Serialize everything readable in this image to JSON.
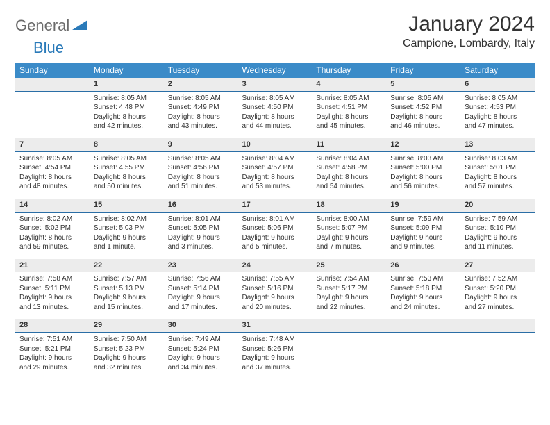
{
  "logo": {
    "general": "General",
    "blue": "Blue",
    "accent_color": "#2a7ab9"
  },
  "header": {
    "title": "January 2024",
    "location": "Campione, Lombardy, Italy"
  },
  "colors": {
    "header_bg": "#3b8bc8",
    "header_text": "#ffffff",
    "daynum_bg": "#ececec",
    "daynum_border": "#2a6ea6",
    "body_text": "#333333"
  },
  "weekdays": [
    "Sunday",
    "Monday",
    "Tuesday",
    "Wednesday",
    "Thursday",
    "Friday",
    "Saturday"
  ],
  "weeks": [
    [
      {
        "n": ""
      },
      {
        "n": "1",
        "sr": "8:05 AM",
        "ss": "4:48 PM",
        "d1": "Daylight: 8 hours",
        "d2": "and 42 minutes."
      },
      {
        "n": "2",
        "sr": "8:05 AM",
        "ss": "4:49 PM",
        "d1": "Daylight: 8 hours",
        "d2": "and 43 minutes."
      },
      {
        "n": "3",
        "sr": "8:05 AM",
        "ss": "4:50 PM",
        "d1": "Daylight: 8 hours",
        "d2": "and 44 minutes."
      },
      {
        "n": "4",
        "sr": "8:05 AM",
        "ss": "4:51 PM",
        "d1": "Daylight: 8 hours",
        "d2": "and 45 minutes."
      },
      {
        "n": "5",
        "sr": "8:05 AM",
        "ss": "4:52 PM",
        "d1": "Daylight: 8 hours",
        "d2": "and 46 minutes."
      },
      {
        "n": "6",
        "sr": "8:05 AM",
        "ss": "4:53 PM",
        "d1": "Daylight: 8 hours",
        "d2": "and 47 minutes."
      }
    ],
    [
      {
        "n": "7",
        "sr": "8:05 AM",
        "ss": "4:54 PM",
        "d1": "Daylight: 8 hours",
        "d2": "and 48 minutes."
      },
      {
        "n": "8",
        "sr": "8:05 AM",
        "ss": "4:55 PM",
        "d1": "Daylight: 8 hours",
        "d2": "and 50 minutes."
      },
      {
        "n": "9",
        "sr": "8:05 AM",
        "ss": "4:56 PM",
        "d1": "Daylight: 8 hours",
        "d2": "and 51 minutes."
      },
      {
        "n": "10",
        "sr": "8:04 AM",
        "ss": "4:57 PM",
        "d1": "Daylight: 8 hours",
        "d2": "and 53 minutes."
      },
      {
        "n": "11",
        "sr": "8:04 AM",
        "ss": "4:58 PM",
        "d1": "Daylight: 8 hours",
        "d2": "and 54 minutes."
      },
      {
        "n": "12",
        "sr": "8:03 AM",
        "ss": "5:00 PM",
        "d1": "Daylight: 8 hours",
        "d2": "and 56 minutes."
      },
      {
        "n": "13",
        "sr": "8:03 AM",
        "ss": "5:01 PM",
        "d1": "Daylight: 8 hours",
        "d2": "and 57 minutes."
      }
    ],
    [
      {
        "n": "14",
        "sr": "8:02 AM",
        "ss": "5:02 PM",
        "d1": "Daylight: 8 hours",
        "d2": "and 59 minutes."
      },
      {
        "n": "15",
        "sr": "8:02 AM",
        "ss": "5:03 PM",
        "d1": "Daylight: 9 hours",
        "d2": "and 1 minute."
      },
      {
        "n": "16",
        "sr": "8:01 AM",
        "ss": "5:05 PM",
        "d1": "Daylight: 9 hours",
        "d2": "and 3 minutes."
      },
      {
        "n": "17",
        "sr": "8:01 AM",
        "ss": "5:06 PM",
        "d1": "Daylight: 9 hours",
        "d2": "and 5 minutes."
      },
      {
        "n": "18",
        "sr": "8:00 AM",
        "ss": "5:07 PM",
        "d1": "Daylight: 9 hours",
        "d2": "and 7 minutes."
      },
      {
        "n": "19",
        "sr": "7:59 AM",
        "ss": "5:09 PM",
        "d1": "Daylight: 9 hours",
        "d2": "and 9 minutes."
      },
      {
        "n": "20",
        "sr": "7:59 AM",
        "ss": "5:10 PM",
        "d1": "Daylight: 9 hours",
        "d2": "and 11 minutes."
      }
    ],
    [
      {
        "n": "21",
        "sr": "7:58 AM",
        "ss": "5:11 PM",
        "d1": "Daylight: 9 hours",
        "d2": "and 13 minutes."
      },
      {
        "n": "22",
        "sr": "7:57 AM",
        "ss": "5:13 PM",
        "d1": "Daylight: 9 hours",
        "d2": "and 15 minutes."
      },
      {
        "n": "23",
        "sr": "7:56 AM",
        "ss": "5:14 PM",
        "d1": "Daylight: 9 hours",
        "d2": "and 17 minutes."
      },
      {
        "n": "24",
        "sr": "7:55 AM",
        "ss": "5:16 PM",
        "d1": "Daylight: 9 hours",
        "d2": "and 20 minutes."
      },
      {
        "n": "25",
        "sr": "7:54 AM",
        "ss": "5:17 PM",
        "d1": "Daylight: 9 hours",
        "d2": "and 22 minutes."
      },
      {
        "n": "26",
        "sr": "7:53 AM",
        "ss": "5:18 PM",
        "d1": "Daylight: 9 hours",
        "d2": "and 24 minutes."
      },
      {
        "n": "27",
        "sr": "7:52 AM",
        "ss": "5:20 PM",
        "d1": "Daylight: 9 hours",
        "d2": "and 27 minutes."
      }
    ],
    [
      {
        "n": "28",
        "sr": "7:51 AM",
        "ss": "5:21 PM",
        "d1": "Daylight: 9 hours",
        "d2": "and 29 minutes."
      },
      {
        "n": "29",
        "sr": "7:50 AM",
        "ss": "5:23 PM",
        "d1": "Daylight: 9 hours",
        "d2": "and 32 minutes."
      },
      {
        "n": "30",
        "sr": "7:49 AM",
        "ss": "5:24 PM",
        "d1": "Daylight: 9 hours",
        "d2": "and 34 minutes."
      },
      {
        "n": "31",
        "sr": "7:48 AM",
        "ss": "5:26 PM",
        "d1": "Daylight: 9 hours",
        "d2": "and 37 minutes."
      },
      {
        "n": ""
      },
      {
        "n": ""
      },
      {
        "n": ""
      }
    ]
  ],
  "labels": {
    "sunrise_prefix": "Sunrise: ",
    "sunset_prefix": "Sunset: "
  }
}
